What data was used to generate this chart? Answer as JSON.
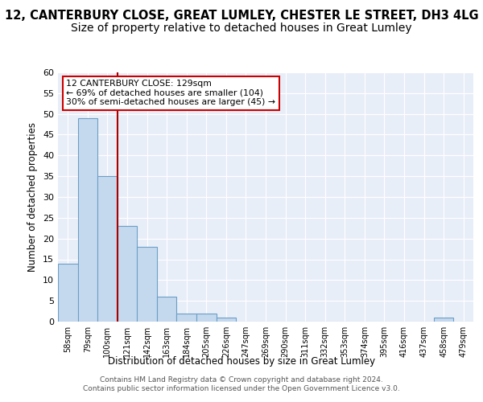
{
  "title1": "12, CANTERBURY CLOSE, GREAT LUMLEY, CHESTER LE STREET, DH3 4LG",
  "title2": "Size of property relative to detached houses in Great Lumley",
  "xlabel": "Distribution of detached houses by size in Great Lumley",
  "ylabel": "Number of detached properties",
  "footnote": "Contains HM Land Registry data © Crown copyright and database right 2024.\nContains public sector information licensed under the Open Government Licence v3.0.",
  "bin_labels": [
    "58sqm",
    "79sqm",
    "100sqm",
    "121sqm",
    "142sqm",
    "163sqm",
    "184sqm",
    "205sqm",
    "226sqm",
    "247sqm",
    "269sqm",
    "290sqm",
    "311sqm",
    "332sqm",
    "353sqm",
    "374sqm",
    "395sqm",
    "416sqm",
    "437sqm",
    "458sqm",
    "479sqm"
  ],
  "bar_values": [
    14,
    49,
    35,
    23,
    18,
    6,
    2,
    2,
    1,
    0,
    0,
    0,
    0,
    0,
    0,
    0,
    0,
    0,
    0,
    1,
    0
  ],
  "bar_color": "#c5d9ee",
  "bar_edge_color": "#6a9fc8",
  "vline_color": "#aa0000",
  "annotation_text": "12 CANTERBURY CLOSE: 129sqm\n← 69% of detached houses are smaller (104)\n30% of semi-detached houses are larger (45) →",
  "annotation_box_color": "#cc0000",
  "ylim": [
    0,
    60
  ],
  "yticks": [
    0,
    5,
    10,
    15,
    20,
    25,
    30,
    35,
    40,
    45,
    50,
    55,
    60
  ],
  "bg_color": "#e8eef8",
  "title1_fontsize": 10.5,
  "title2_fontsize": 10,
  "vline_bar_index": 2.5
}
